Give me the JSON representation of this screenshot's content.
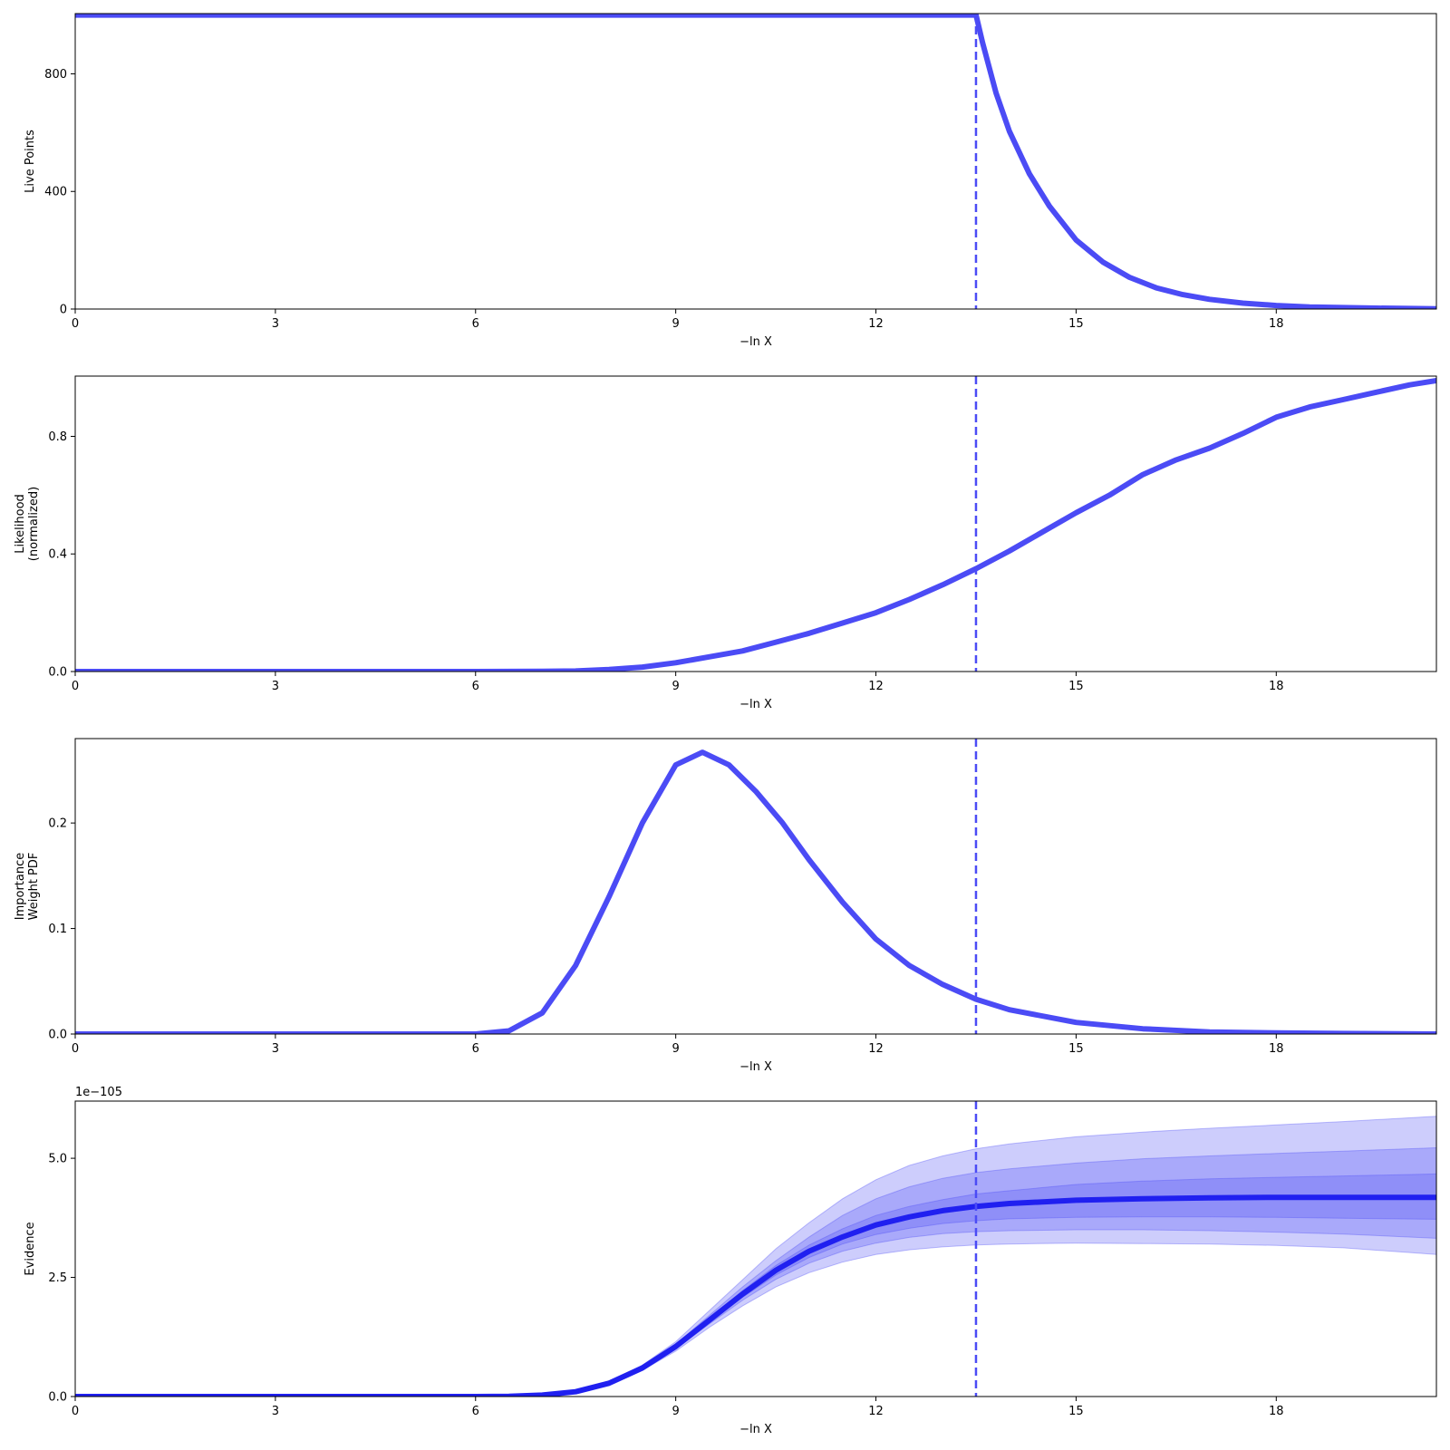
{
  "chart_data": [
    {
      "type": "line",
      "xlabel": "−ln X",
      "ylabel": "Live Points",
      "xlim": [
        0,
        20.4
      ],
      "ylim": [
        0,
        1005
      ],
      "xticks": [
        0,
        3,
        6,
        9,
        12,
        15,
        18
      ],
      "xtick_labels": [
        "0",
        "3",
        "6",
        "9",
        "12",
        "15",
        "18"
      ],
      "yticks": [
        0,
        400,
        800
      ],
      "ytick_labels": [
        "0",
        "400",
        "800"
      ],
      "color": "#4b4bf5",
      "vline": 13.5,
      "series": [
        {
          "x": [
            0,
            13.5,
            13.6,
            13.8,
            14.0,
            14.3,
            14.6,
            15.0,
            15.4,
            15.8,
            16.2,
            16.6,
            17.0,
            17.5,
            18.0,
            18.5,
            19.0,
            19.5,
            20.0,
            20.4
          ],
          "values": [
            1000,
            1000,
            905,
            735,
            605,
            460,
            350,
            235,
            160,
            108,
            72,
            49,
            33,
            20,
            12,
            7,
            5,
            3,
            2,
            1
          ]
        }
      ]
    },
    {
      "type": "line",
      "xlabel": "−ln X",
      "ylabel": "Likelihood\n(normalized)",
      "xlim": [
        0,
        20.4
      ],
      "ylim": [
        0,
        1.005
      ],
      "xticks": [
        0,
        3,
        6,
        9,
        12,
        15,
        18
      ],
      "xtick_labels": [
        "0",
        "3",
        "6",
        "9",
        "12",
        "15",
        "18"
      ],
      "yticks": [
        0,
        0.4,
        0.8
      ],
      "ytick_labels": [
        "0.0",
        "0.4",
        "0.8"
      ],
      "color": "#4b4bf5",
      "vline": 13.5,
      "series": [
        {
          "x": [
            0,
            6,
            7,
            7.5,
            8,
            8.5,
            9,
            9.5,
            10,
            10.5,
            11,
            11.5,
            12,
            12.5,
            13,
            13.5,
            14,
            14.5,
            15,
            15.5,
            16,
            16.5,
            17,
            17.5,
            18,
            18.5,
            19,
            19.5,
            20,
            20.4
          ],
          "values": [
            0,
            0,
            0.0005,
            0.002,
            0.007,
            0.015,
            0.03,
            0.05,
            0.07,
            0.1,
            0.13,
            0.165,
            0.2,
            0.245,
            0.295,
            0.35,
            0.41,
            0.475,
            0.54,
            0.6,
            0.67,
            0.72,
            0.76,
            0.81,
            0.865,
            0.9,
            0.925,
            0.95,
            0.975,
            0.99
          ]
        }
      ]
    },
    {
      "type": "line",
      "xlabel": "−ln X",
      "ylabel": "Importance\nWeight PDF",
      "xlim": [
        0,
        20.4
      ],
      "ylim": [
        0,
        0.28
      ],
      "xticks": [
        0,
        3,
        6,
        9,
        12,
        15,
        18
      ],
      "xtick_labels": [
        "0",
        "3",
        "6",
        "9",
        "12",
        "15",
        "18"
      ],
      "yticks": [
        0,
        0.1,
        0.2
      ],
      "ytick_labels": [
        "0.0",
        "0.1",
        "0.2"
      ],
      "color": "#4b4bf5",
      "vline": 13.5,
      "series": [
        {
          "x": [
            0,
            6,
            6.5,
            7,
            7.5,
            8,
            8.5,
            9,
            9.4,
            9.8,
            10.2,
            10.6,
            11,
            11.5,
            12,
            12.5,
            13,
            13.5,
            14,
            15,
            16,
            17,
            18,
            19,
            20.4
          ],
          "values": [
            0,
            0,
            0.003,
            0.02,
            0.065,
            0.13,
            0.2,
            0.255,
            0.267,
            0.255,
            0.23,
            0.2,
            0.165,
            0.125,
            0.09,
            0.065,
            0.047,
            0.033,
            0.023,
            0.011,
            0.005,
            0.002,
            0.001,
            0.0005,
            0
          ]
        }
      ]
    },
    {
      "type": "area",
      "xlabel": "−ln X",
      "ylabel": "Evidence",
      "offset_text": "1e−105",
      "xlim": [
        0,
        20.4
      ],
      "ylim": [
        0,
        6.2
      ],
      "xticks": [
        0,
        3,
        6,
        9,
        12,
        15,
        18
      ],
      "xtick_labels": [
        "0",
        "3",
        "6",
        "9",
        "12",
        "15",
        "18"
      ],
      "yticks": [
        0,
        2.5,
        5.0
      ],
      "ytick_labels": [
        "0.0",
        "2.5",
        "5.0"
      ],
      "color": "#2020f0",
      "band_color": "#4b4bf5",
      "vline": 13.5,
      "x": [
        0,
        6,
        6.5,
        7,
        7.5,
        8,
        8.5,
        9,
        9.5,
        10,
        10.5,
        11,
        11.5,
        12,
        12.5,
        13,
        13.5,
        14,
        15,
        16,
        17,
        18,
        19,
        20.4
      ],
      "median": [
        0,
        0,
        0.005,
        0.03,
        0.1,
        0.28,
        0.6,
        1.05,
        1.6,
        2.15,
        2.65,
        3.05,
        3.35,
        3.6,
        3.77,
        3.9,
        3.99,
        4.05,
        4.12,
        4.15,
        4.17,
        4.18,
        4.18,
        4.18
      ],
      "bands": [
        {
          "lower": [
            0,
            0,
            0.005,
            0.028,
            0.09,
            0.25,
            0.55,
            0.95,
            1.45,
            1.9,
            2.3,
            2.6,
            2.82,
            2.98,
            3.08,
            3.14,
            3.18,
            3.2,
            3.22,
            3.21,
            3.2,
            3.17,
            3.12,
            2.98
          ],
          "upper": [
            0,
            0,
            0.006,
            0.034,
            0.11,
            0.31,
            0.66,
            1.15,
            1.8,
            2.45,
            3.1,
            3.65,
            4.15,
            4.55,
            4.85,
            5.05,
            5.2,
            5.3,
            5.45,
            5.55,
            5.63,
            5.7,
            5.77,
            5.88
          ]
        },
        {
          "lower": [
            0,
            0,
            0.005,
            0.029,
            0.095,
            0.265,
            0.575,
            1.0,
            1.52,
            2.02,
            2.46,
            2.8,
            3.05,
            3.22,
            3.34,
            3.42,
            3.46,
            3.48,
            3.5,
            3.5,
            3.48,
            3.45,
            3.41,
            3.32
          ],
          "upper": [
            0,
            0,
            0.0055,
            0.032,
            0.105,
            0.295,
            0.63,
            1.1,
            1.7,
            2.3,
            2.85,
            3.35,
            3.8,
            4.15,
            4.4,
            4.58,
            4.7,
            4.78,
            4.9,
            4.99,
            5.05,
            5.1,
            5.15,
            5.22
          ]
        },
        {
          "lower": [
            0,
            0,
            0.005,
            0.0295,
            0.098,
            0.27,
            0.585,
            1.02,
            1.56,
            2.08,
            2.55,
            2.92,
            3.2,
            3.4,
            3.53,
            3.63,
            3.69,
            3.73,
            3.76,
            3.77,
            3.77,
            3.76,
            3.74,
            3.72
          ],
          "upper": [
            0,
            0,
            0.0052,
            0.031,
            0.102,
            0.29,
            0.615,
            1.08,
            1.64,
            2.22,
            2.75,
            3.18,
            3.52,
            3.8,
            3.99,
            4.13,
            4.25,
            4.32,
            4.45,
            4.52,
            4.57,
            4.6,
            4.63,
            4.67
          ]
        }
      ]
    }
  ]
}
